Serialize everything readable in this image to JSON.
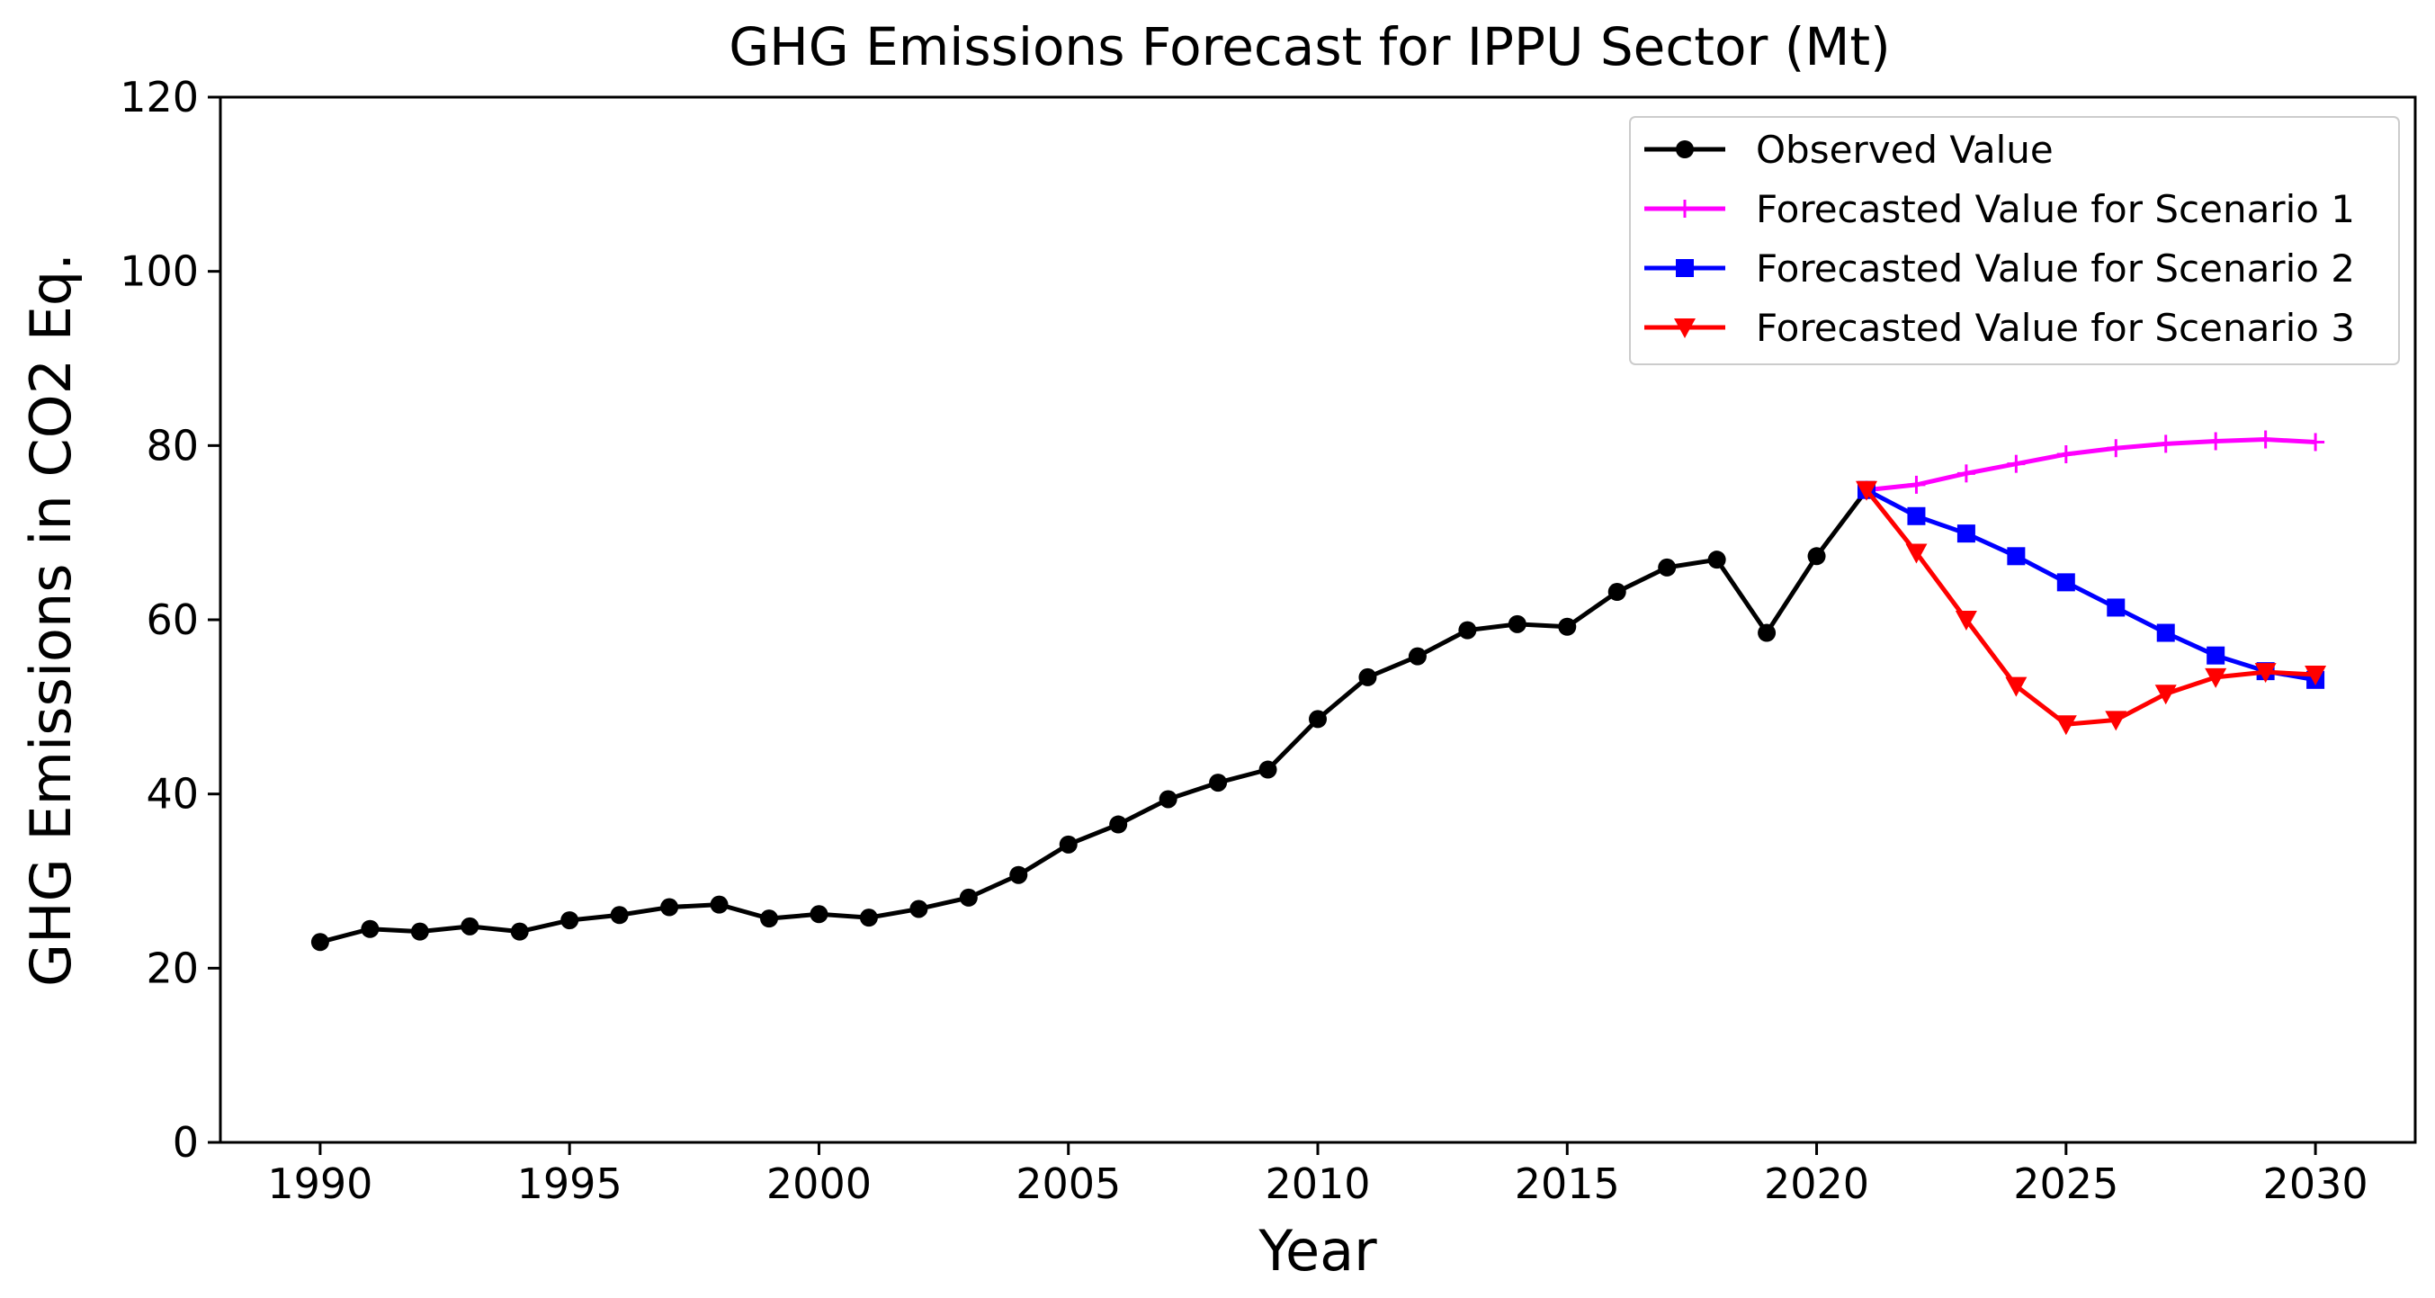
{
  "chart_data": {
    "type": "line",
    "title": "GHG Emissions Forecast for IPPU Sector (Mt)",
    "xlabel": "Year",
    "ylabel": "GHG Emissions in CO2 Eq.",
    "xlim": [
      1988,
      2032
    ],
    "ylim": [
      0,
      120
    ],
    "xticks": [
      1990,
      1995,
      2000,
      2005,
      2010,
      2015,
      2020,
      2025,
      2030
    ],
    "yticks": [
      0,
      20,
      40,
      60,
      80,
      100,
      120
    ],
    "grid": false,
    "legend_position": "top-right",
    "series": [
      {
        "name": "Observed Value",
        "color": "#000000",
        "marker": "circle",
        "x": [
          1990,
          1991,
          1992,
          1993,
          1994,
          1995,
          1996,
          1997,
          1998,
          1999,
          2000,
          2001,
          2002,
          2003,
          2004,
          2005,
          2006,
          2007,
          2008,
          2009,
          2010,
          2011,
          2012,
          2013,
          2014,
          2015,
          2016,
          2017,
          2018,
          2019,
          2020,
          2021
        ],
        "values": [
          23.0,
          24.5,
          24.2,
          24.8,
          24.2,
          25.5,
          26.1,
          27.0,
          27.3,
          25.7,
          26.2,
          25.8,
          26.8,
          28.1,
          30.7,
          34.2,
          36.5,
          39.4,
          41.3,
          42.8,
          48.6,
          53.4,
          55.8,
          58.8,
          59.5,
          59.2,
          63.2,
          66.0,
          66.9,
          58.5,
          67.3,
          74.9
        ]
      },
      {
        "name": "Forecasted Value for Scenario 1",
        "color": "#ff00ff",
        "marker": "plus",
        "x": [
          2021,
          2022,
          2023,
          2024,
          2025,
          2026,
          2027,
          2028,
          2029,
          2030
        ],
        "values": [
          74.9,
          75.5,
          76.8,
          77.9,
          79.0,
          79.7,
          80.2,
          80.5,
          80.7,
          80.4
        ]
      },
      {
        "name": "Forecasted Value for Scenario 2",
        "color": "#0000ff",
        "marker": "square",
        "x": [
          2021,
          2022,
          2023,
          2024,
          2025,
          2026,
          2027,
          2028,
          2029,
          2030
        ],
        "values": [
          74.9,
          71.9,
          69.9,
          67.3,
          64.3,
          61.4,
          58.5,
          55.9,
          54.1,
          53.1
        ]
      },
      {
        "name": "Forecasted Value for Scenario 3",
        "color": "#ff0000",
        "marker": "triangle-down",
        "x": [
          2021,
          2022,
          2023,
          2024,
          2025,
          2026,
          2027,
          2028,
          2029,
          2030
        ],
        "values": [
          74.9,
          67.7,
          60.0,
          52.4,
          48.0,
          48.5,
          51.5,
          53.4,
          54.0,
          53.7
        ]
      }
    ]
  }
}
